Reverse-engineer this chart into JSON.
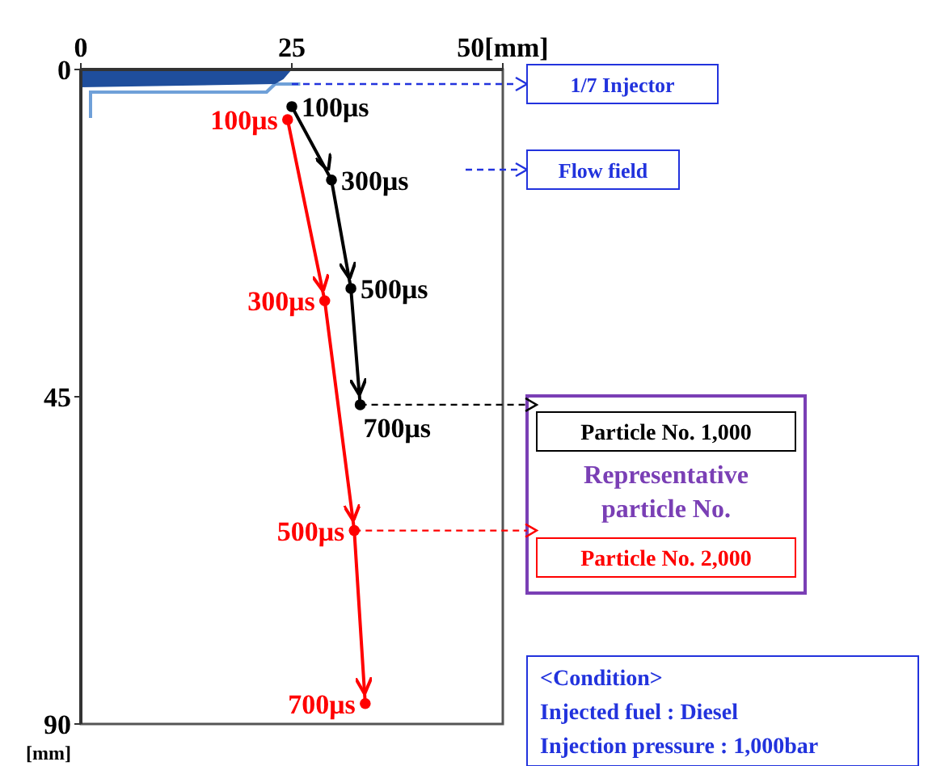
{
  "chart_data": {
    "type": "line",
    "marker": "circle",
    "line_style": "solid",
    "legend": "right",
    "legend_title": "Representative particle No.",
    "ylabel": "[mm]",
    "xlim": [
      0,
      50
    ],
    "xticks": [
      0,
      25,
      {
        "value": 50,
        "label": "50[mm]"
      }
    ],
    "ylim": [
      90,
      0
    ],
    "yticks": [
      0,
      45,
      90
    ],
    "series": [
      {
        "name": "Particle No. 1,000",
        "color": "#000000",
        "x": [
          25,
          29.7,
          32,
          33.1
        ],
        "values": [
          5.1,
          15.2,
          30.1,
          46.1
        ]
      },
      {
        "name": "Particle No. 2,000",
        "color": "#ff0000",
        "x": [
          24.5,
          28.9,
          32.4,
          33.7
        ],
        "values": [
          6.9,
          31.8,
          63.4,
          87.2
        ]
      }
    ],
    "annotations": [
      "1/7 Injector",
      "Flow field",
      "<Condition>",
      "Injected fuel : Diesel",
      "Injection pressure : 1,000bar",
      {
        "text": "100μs",
        "x": 25,
        "y": 5.1
      },
      {
        "text": "300μs",
        "x": 29.7,
        "y": 15.2
      },
      {
        "text": "500μs",
        "x": 32,
        "y": 30.1
      },
      {
        "text": "700μs",
        "x": 33.1,
        "y": 46.1
      },
      {
        "text": "100μs",
        "x": 24.5,
        "y": 6.9
      },
      {
        "text": "300μs",
        "x": 28.9,
        "y": 31.8
      },
      {
        "text": "500μs",
        "x": 32.4,
        "y": 63.4
      },
      {
        "text": "700μs",
        "x": 33.7,
        "y": 87.2
      }
    ]
  }
}
